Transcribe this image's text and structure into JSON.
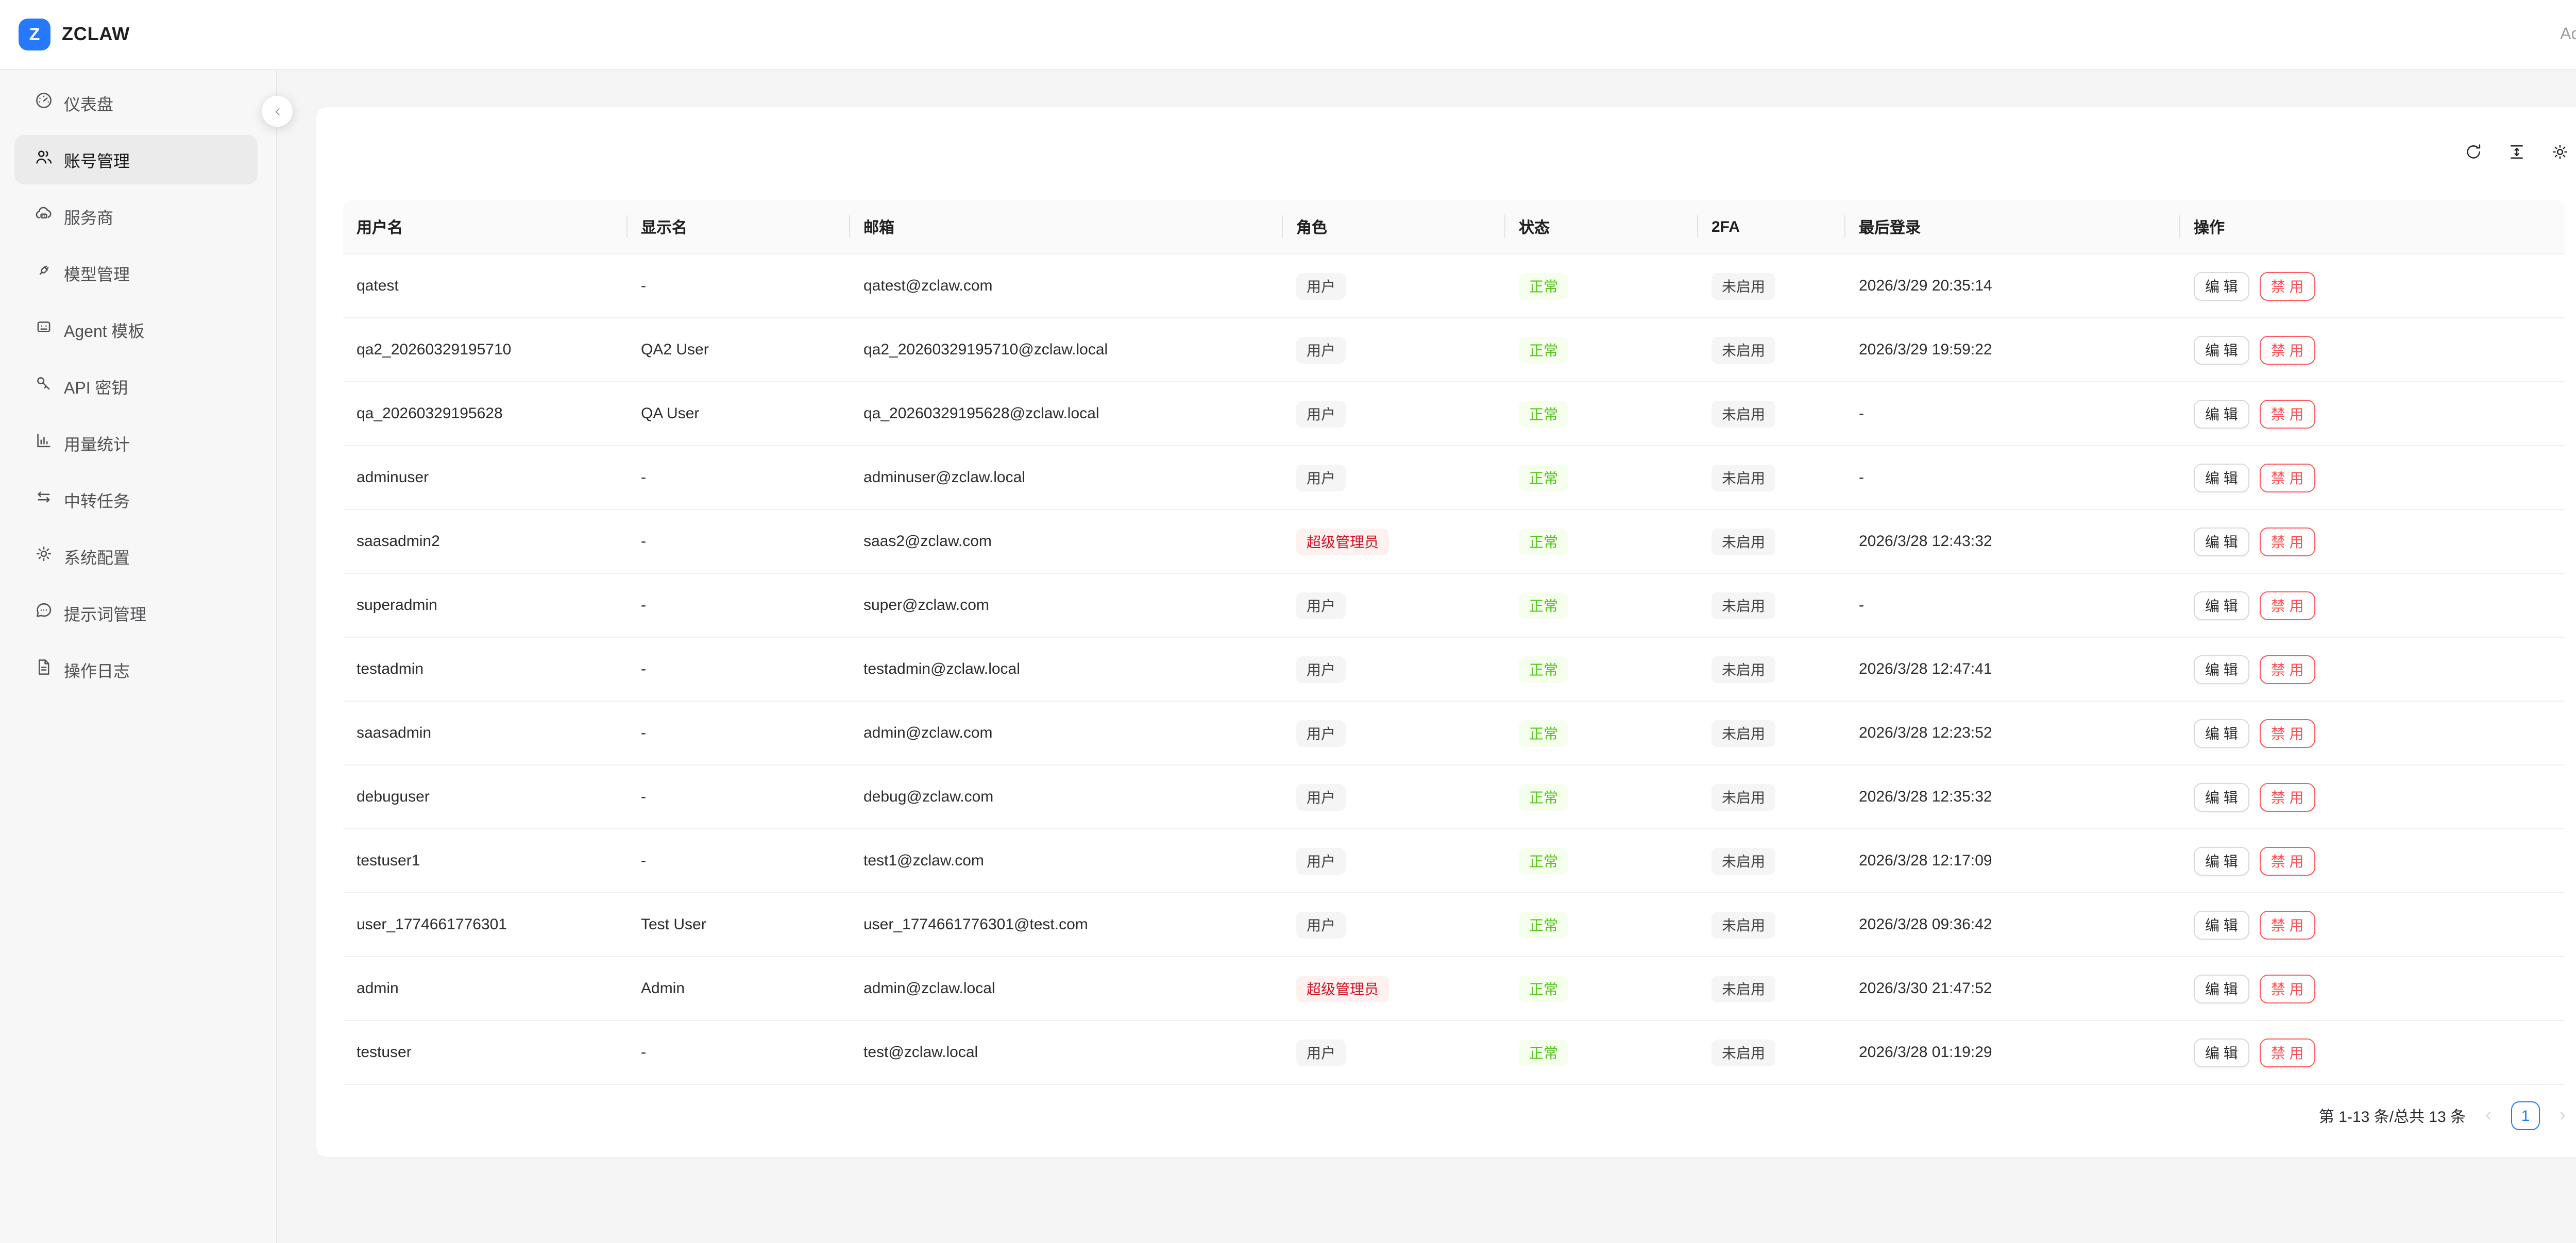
{
  "brand": {
    "logo_letter": "Z",
    "name": "ZCLAW"
  },
  "topbar": {
    "user_label": "Admin"
  },
  "sidebar": {
    "items": [
      {
        "key": "dashboard",
        "icon": "dashboard-icon",
        "label": "仪表盘",
        "active": false
      },
      {
        "key": "accounts",
        "icon": "users-icon",
        "label": "账号管理",
        "active": true
      },
      {
        "key": "providers",
        "icon": "cloud-server-icon",
        "label": "服务商",
        "active": false
      },
      {
        "key": "models",
        "icon": "api-plug-icon",
        "label": "模型管理",
        "active": false
      },
      {
        "key": "agent-template",
        "icon": "robot-icon",
        "label": "Agent 模板",
        "active": false
      },
      {
        "key": "api-keys",
        "icon": "key-icon",
        "label": "API 密钥",
        "active": false
      },
      {
        "key": "usage-stats",
        "icon": "bar-chart-icon",
        "label": "用量统计",
        "active": false
      },
      {
        "key": "relay-tasks",
        "icon": "swap-arrows-icon",
        "label": "中转任务",
        "active": false
      },
      {
        "key": "system-config",
        "icon": "gear-icon",
        "label": "系统配置",
        "active": false
      },
      {
        "key": "prompts",
        "icon": "chat-bubble-icon",
        "label": "提示词管理",
        "active": false
      },
      {
        "key": "operation-logs",
        "icon": "document-icon",
        "label": "操作日志",
        "active": false
      }
    ]
  },
  "toolbar": {
    "icons": [
      {
        "key": "refresh",
        "name": "refresh-icon"
      },
      {
        "key": "column-height",
        "name": "column-height-icon"
      },
      {
        "key": "settings",
        "name": "settings-icon"
      }
    ]
  },
  "table": {
    "columns": [
      "用户名",
      "显示名",
      "邮箱",
      "角色",
      "状态",
      "2FA",
      "最后登录",
      "操作"
    ],
    "action_labels": {
      "edit": "编 辑",
      "disable": "禁 用"
    },
    "rows": [
      {
        "username": "qatest",
        "display_name": "-",
        "email": "qatest@zclaw.com",
        "role": "用户",
        "role_variant": "neutral",
        "status": "正常",
        "twofa": "未启用",
        "last_login": "2026/3/29 20:35:14"
      },
      {
        "username": "qa2_20260329195710",
        "display_name": "QA2 User",
        "email": "qa2_20260329195710@zclaw.local",
        "role": "用户",
        "role_variant": "neutral",
        "status": "正常",
        "twofa": "未启用",
        "last_login": "2026/3/29 19:59:22"
      },
      {
        "username": "qa_20260329195628",
        "display_name": "QA User",
        "email": "qa_20260329195628@zclaw.local",
        "role": "用户",
        "role_variant": "neutral",
        "status": "正常",
        "twofa": "未启用",
        "last_login": "-"
      },
      {
        "username": "adminuser",
        "display_name": "-",
        "email": "adminuser@zclaw.local",
        "role": "用户",
        "role_variant": "neutral",
        "status": "正常",
        "twofa": "未启用",
        "last_login": "-"
      },
      {
        "username": "saasadmin2",
        "display_name": "-",
        "email": "saas2@zclaw.com",
        "role": "超级管理员",
        "role_variant": "danger",
        "status": "正常",
        "twofa": "未启用",
        "last_login": "2026/3/28 12:43:32"
      },
      {
        "username": "superadmin",
        "display_name": "-",
        "email": "super@zclaw.com",
        "role": "用户",
        "role_variant": "neutral",
        "status": "正常",
        "twofa": "未启用",
        "last_login": "-"
      },
      {
        "username": "testadmin",
        "display_name": "-",
        "email": "testadmin@zclaw.local",
        "role": "用户",
        "role_variant": "neutral",
        "status": "正常",
        "twofa": "未启用",
        "last_login": "2026/3/28 12:47:41"
      },
      {
        "username": "saasadmin",
        "display_name": "-",
        "email": "admin@zclaw.com",
        "role": "用户",
        "role_variant": "neutral",
        "status": "正常",
        "twofa": "未启用",
        "last_login": "2026/3/28 12:23:52"
      },
      {
        "username": "debuguser",
        "display_name": "-",
        "email": "debug@zclaw.com",
        "role": "用户",
        "role_variant": "neutral",
        "status": "正常",
        "twofa": "未启用",
        "last_login": "2026/3/28 12:35:32"
      },
      {
        "username": "testuser1",
        "display_name": "-",
        "email": "test1@zclaw.com",
        "role": "用户",
        "role_variant": "neutral",
        "status": "正常",
        "twofa": "未启用",
        "last_login": "2026/3/28 12:17:09"
      },
      {
        "username": "user_1774661776301",
        "display_name": "Test User",
        "email": "user_1774661776301@test.com",
        "role": "用户",
        "role_variant": "neutral",
        "status": "正常",
        "twofa": "未启用",
        "last_login": "2026/3/28 09:36:42"
      },
      {
        "username": "admin",
        "display_name": "Admin",
        "email": "admin@zclaw.local",
        "role": "超级管理员",
        "role_variant": "danger",
        "status": "正常",
        "twofa": "未启用",
        "last_login": "2026/3/30 21:47:52"
      },
      {
        "username": "testuser",
        "display_name": "-",
        "email": "test@zclaw.local",
        "role": "用户",
        "role_variant": "neutral",
        "status": "正常",
        "twofa": "未启用",
        "last_login": "2026/3/28 01:19:29"
      }
    ]
  },
  "pagination": {
    "total_text": "第 1-13 条/总共 13 条",
    "current_page": "1"
  },
  "colors": {
    "accent": "#2579ff",
    "success_text": "#52c41a",
    "success_bg": "#f6ffed",
    "super_admin_text": "#cf1322",
    "super_admin_bg": "#fff1f0",
    "danger": "#ff4d4f",
    "neutral_badge_bg": "#f5f5f5",
    "page_bg": "#f5f5f6"
  }
}
